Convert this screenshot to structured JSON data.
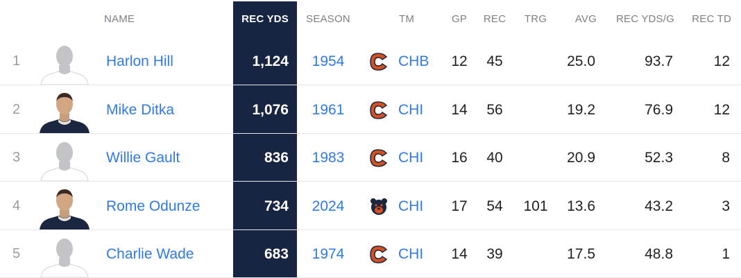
{
  "headers": {
    "name": "NAME",
    "rec_yds": "REC YDS",
    "season": "SEASON",
    "tm": "TM",
    "gp": "GP",
    "rec": "REC",
    "trg": "TRG",
    "avg": "AVG",
    "rec_yds_g": "REC YDS/G",
    "rec_td": "REC TD"
  },
  "rows": [
    {
      "rank": "1",
      "name": "Harlon Hill",
      "rec_yds": "1,124",
      "season": "1954",
      "logo": "bears-c-logo",
      "team": "CHB",
      "gp": "12",
      "rec": "45",
      "trg": "",
      "avg": "25.0",
      "ypg": "93.7",
      "td": "12",
      "avatar": "silhouette"
    },
    {
      "rank": "2",
      "name": "Mike Ditka",
      "rec_yds": "1,076",
      "season": "1961",
      "logo": "bears-c-logo",
      "team": "CHI",
      "gp": "14",
      "rec": "56",
      "trg": "",
      "avg": "19.2",
      "ypg": "76.9",
      "td": "12",
      "avatar": "photo"
    },
    {
      "rank": "3",
      "name": "Willie Gault",
      "rec_yds": "836",
      "season": "1983",
      "logo": "bears-c-logo",
      "team": "CHI",
      "gp": "16",
      "rec": "40",
      "trg": "",
      "avg": "20.9",
      "ypg": "52.3",
      "td": "8",
      "avatar": "silhouette"
    },
    {
      "rank": "4",
      "name": "Rome Odunze",
      "rec_yds": "734",
      "season": "2024",
      "logo": "bear-head-logo",
      "team": "CHI",
      "gp": "17",
      "rec": "54",
      "trg": "101",
      "avg": "13.6",
      "ypg": "43.2",
      "td": "3",
      "avatar": "photo"
    },
    {
      "rank": "5",
      "name": "Charlie Wade",
      "rec_yds": "683",
      "season": "1974",
      "logo": "bears-c-logo",
      "team": "CHI",
      "gp": "14",
      "rec": "39",
      "trg": "",
      "avg": "17.5",
      "ypg": "48.8",
      "td": "1",
      "avatar": "silhouette"
    }
  ],
  "colors": {
    "highlight_column": "#172542",
    "link": "#2f7ae5",
    "bears_orange": "#d4501e",
    "bears_navy": "#1b2740"
  }
}
